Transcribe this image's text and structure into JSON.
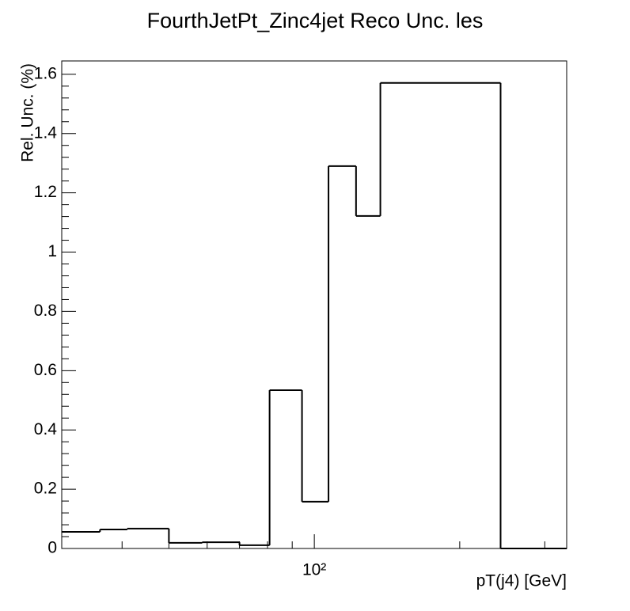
{
  "chart_data": {
    "type": "histogram",
    "title": "FourthJetPt_Zinc4jet Reco Unc. les",
    "xlabel": "pT(j4) [GeV]",
    "ylabel": "Rel. Unc. (%)",
    "bins": [
      30,
      36,
      41,
      50,
      58.6,
      70,
      80.8,
      94.3,
      107,
      122,
      137,
      243,
      333
    ],
    "values": [
      0.056,
      0.064,
      0.067,
      0.019,
      0.021,
      0.011,
      0.534,
      0.158,
      1.29,
      1.122,
      1.571,
      0
    ],
    "color": "#000000",
    "xlog": true,
    "xlim": [
      30,
      333
    ],
    "xticks": [
      {
        "value": 100,
        "label": "10²"
      }
    ],
    "ylim": [
      0,
      1.645
    ],
    "yticks": [
      0,
      0.2,
      0.4,
      0.6,
      0.8,
      1,
      1.2,
      1.4,
      1.6
    ]
  }
}
